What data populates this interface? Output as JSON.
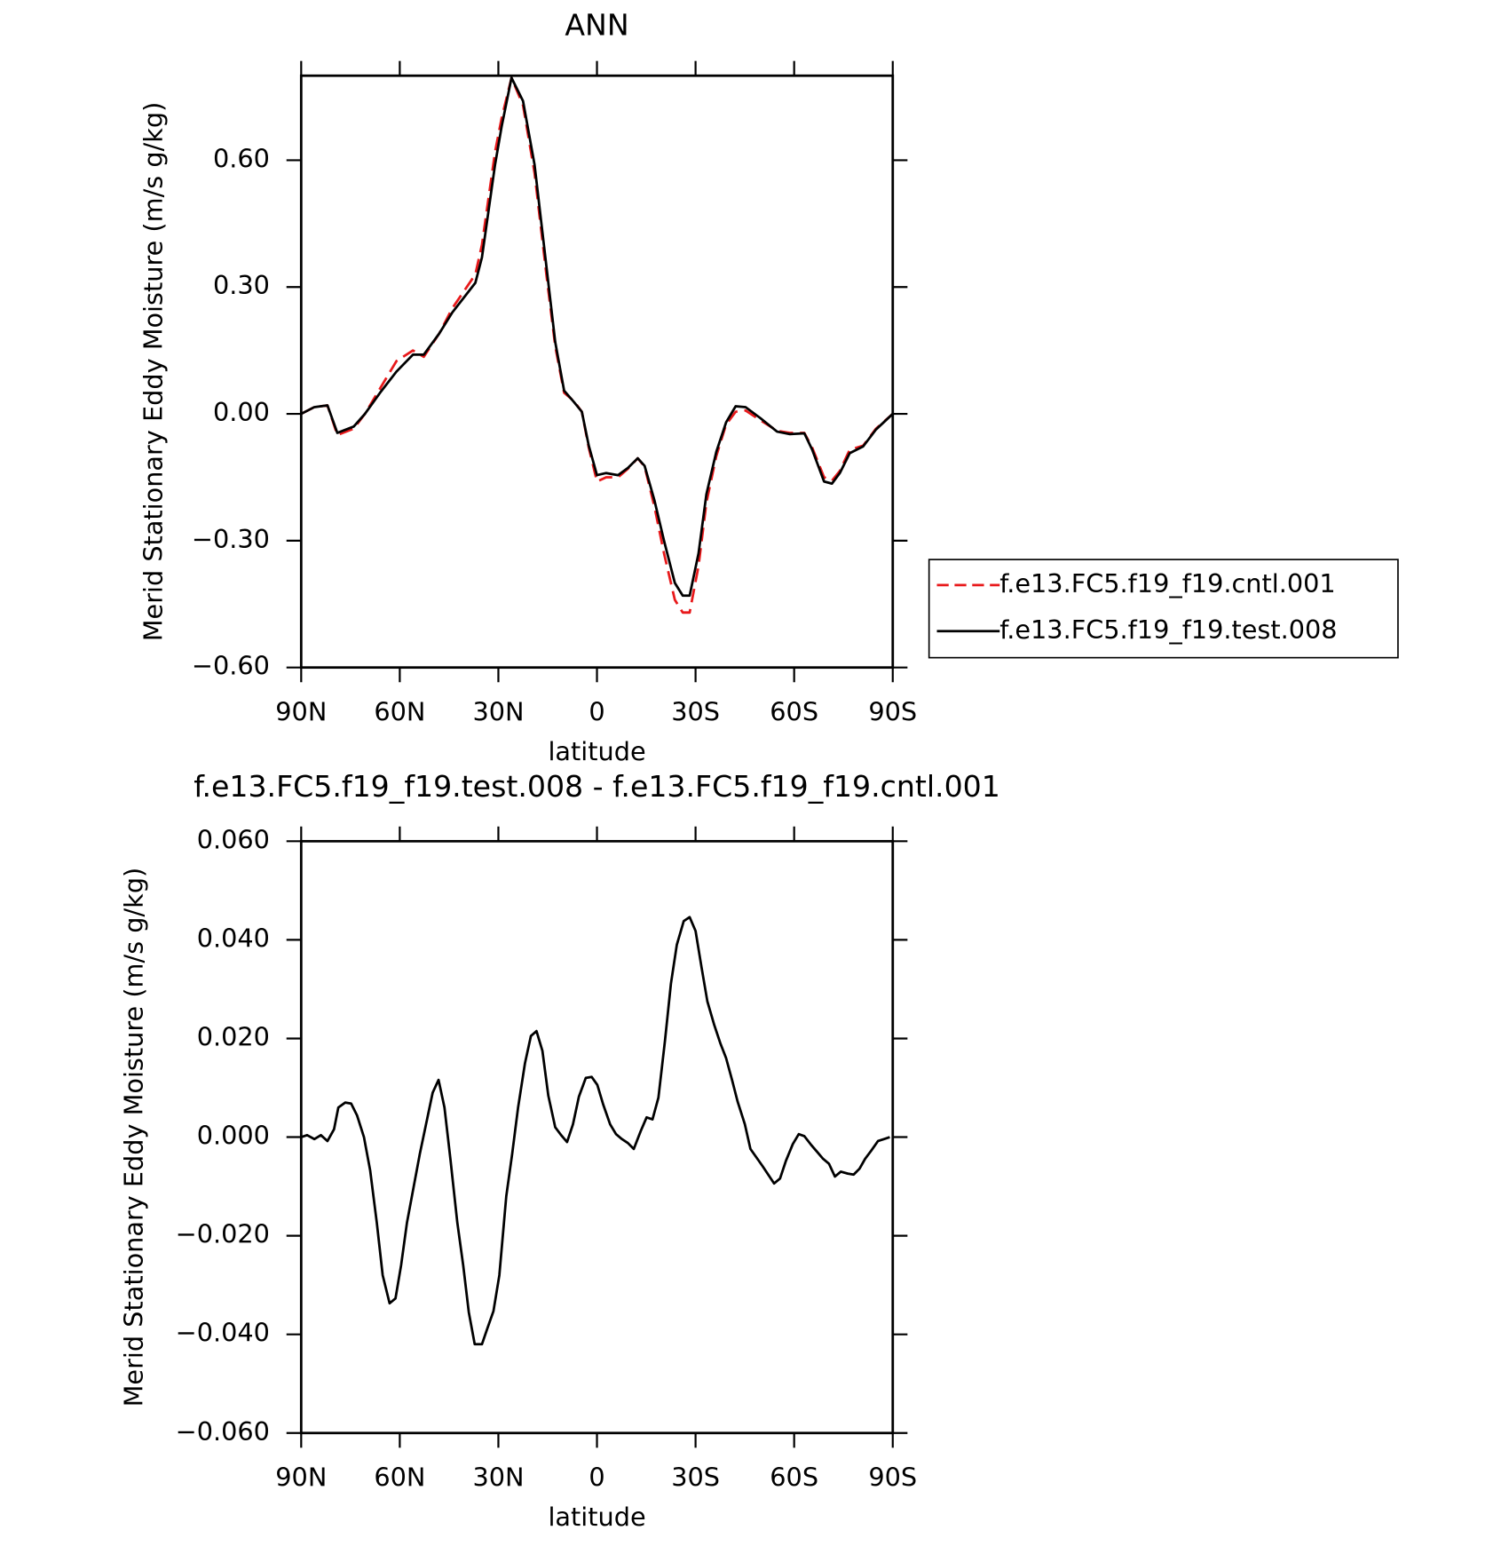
{
  "chart_data": [
    {
      "type": "line",
      "title": "ANN",
      "xlabel": "latitude",
      "ylabel": "Merid Stationary Eddy Moisture (m/s g/kg)",
      "x": [
        90,
        86,
        82,
        79,
        74,
        70.6,
        66,
        61,
        56,
        52.7,
        48,
        44,
        37,
        35,
        31,
        29,
        26,
        22.5,
        19,
        15.4,
        12.7,
        10,
        7,
        4.6,
        2.5,
        0,
        -2.8,
        -6.4,
        -9.4,
        -12.4,
        -14.5,
        -17.5,
        -20.4,
        -23.7,
        -26.1,
        -28.2,
        -30.9,
        -33.3,
        -36.3,
        -39.3,
        -42.2,
        -45.2,
        -49.7,
        -54.8,
        -58.7,
        -63.1,
        -65.5,
        -69.1,
        -71.5,
        -73.9,
        -76.9,
        -81,
        -84.9,
        -90
      ],
      "series": [
        {
          "name": "f.e13.FC5.f19_f19.cntl.001",
          "color": "#e8191b",
          "dash": true,
          "values": [
            0,
            0.016,
            0.02,
            -0.05,
            -0.035,
            0,
            0.06,
            0.125,
            0.15,
            0.135,
            0.19,
            0.25,
            0.33,
            0.4,
            0.62,
            0.7,
            0.795,
            0.73,
            0.57,
            0.33,
            0.16,
            0.05,
            0.03,
            0.005,
            -0.08,
            -0.16,
            -0.15,
            -0.15,
            -0.13,
            -0.105,
            -0.125,
            -0.22,
            -0.33,
            -0.44,
            -0.47,
            -0.47,
            -0.36,
            -0.21,
            -0.1,
            -0.025,
            0.005,
            0.008,
            -0.015,
            -0.04,
            -0.045,
            -0.045,
            -0.08,
            -0.15,
            -0.158,
            -0.135,
            -0.085,
            -0.075,
            -0.035,
            0
          ]
        },
        {
          "name": "f.e13.FC5.f19_f19.test.008",
          "color": "#000000",
          "dash": false,
          "values": [
            0,
            0.016,
            0.02,
            -0.045,
            -0.03,
            0,
            0.05,
            0.1,
            0.14,
            0.14,
            0.19,
            0.24,
            0.31,
            0.37,
            0.59,
            0.68,
            0.795,
            0.74,
            0.59,
            0.35,
            0.17,
            0.055,
            0.028,
            0.005,
            -0.075,
            -0.145,
            -0.14,
            -0.145,
            -0.128,
            -0.105,
            -0.123,
            -0.205,
            -0.3,
            -0.4,
            -0.43,
            -0.43,
            -0.33,
            -0.19,
            -0.09,
            -0.02,
            0.018,
            0.016,
            -0.01,
            -0.042,
            -0.048,
            -0.046,
            -0.085,
            -0.16,
            -0.165,
            -0.14,
            -0.093,
            -0.077,
            -0.037,
            0
          ]
        }
      ],
      "xlim": [
        90,
        -90
      ],
      "xticks": [
        {
          "value": 90,
          "label": "90N"
        },
        {
          "value": 60,
          "label": "60N"
        },
        {
          "value": 30,
          "label": "30N"
        },
        0,
        {
          "value": -30,
          "label": "30S"
        },
        {
          "value": -60,
          "label": "60S"
        },
        {
          "value": -90,
          "label": "90S"
        }
      ],
      "ylim": [
        -0.6,
        0.8
      ],
      "yticks": [
        {
          "value": -0.6,
          "label": "−0.60"
        },
        {
          "value": -0.3,
          "label": "−0.30"
        },
        {
          "value": 0,
          "label": "0.00"
        },
        {
          "value": 0.3,
          "label": "0.30"
        },
        {
          "value": 0.6,
          "label": "0.60"
        }
      ],
      "legend": "right"
    },
    {
      "type": "line",
      "title": "f.e13.FC5.f19_f19.test.008 - f.e13.FC5.f19_f19.cntl.001",
      "xlabel": "latitude",
      "ylabel": "Merid Stationary Eddy Moisture (m/s g/kg)",
      "x": [
        90,
        88.2,
        86,
        84,
        82,
        80,
        78.7,
        76.6,
        74.8,
        73,
        70.9,
        69,
        67,
        65.2,
        63.1,
        61.3,
        59.6,
        57.8,
        53.9,
        50,
        48.2,
        46.4,
        44.6,
        42.5,
        40.7,
        39,
        37.2,
        35,
        33.3,
        31.5,
        29.7,
        27.6,
        25.8,
        24,
        21.9,
        20.1,
        18.4,
        16.6,
        14.8,
        12.7,
        10.9,
        9.1,
        7.3,
        5.5,
        3.4,
        1.6,
        -0.1,
        -1.9,
        -4,
        -5.8,
        -7.6,
        -9.4,
        -11.2,
        -13.3,
        -15.1,
        -16.9,
        -18.7,
        -20.7,
        -22.5,
        -24.3,
        -26.4,
        -28.2,
        -30,
        -31.8,
        -33.6,
        -35.7,
        -37.5,
        -39.3,
        -41.1,
        -42.8,
        -45,
        -46.7,
        -50.3,
        -53.9,
        -55.7,
        -57.5,
        -59.6,
        -61.4,
        -63.1,
        -65.2,
        -67,
        -68.8,
        -70.6,
        -72.4,
        -74.2,
        -76.3,
        -78.1,
        -79.9,
        -81.6,
        -83.4,
        -85.5,
        -87.3,
        -89.1
      ],
      "values": [
        0,
        0.0004,
        -0.0004,
        0.0004,
        -0.0008,
        0.0016,
        0.006,
        0.007,
        0.0068,
        0.0044,
        0,
        -0.0068,
        -0.0173,
        -0.028,
        -0.0337,
        -0.0327,
        -0.026,
        -0.0173,
        -0.0034,
        0.009,
        0.0116,
        0.006,
        -0.0044,
        -0.0173,
        -0.026,
        -0.0355,
        -0.042,
        -0.042,
        -0.0387,
        -0.0353,
        -0.028,
        -0.012,
        -0.0034,
        0.006,
        0.015,
        0.0205,
        0.0215,
        0.0175,
        0.0084,
        0.002,
        0.0004,
        -0.001,
        0.0026,
        0.0082,
        0.012,
        0.0122,
        0.0106,
        0.0066,
        0.0026,
        0.0006,
        -0.0004,
        -0.0012,
        -0.0024,
        0.0012,
        0.004,
        0.0036,
        0.008,
        0.0196,
        0.0311,
        0.039,
        0.0438,
        0.0446,
        0.0418,
        0.0345,
        0.0275,
        0.0227,
        0.0191,
        0.016,
        0.0116,
        0.0072,
        0.0026,
        -0.0024,
        -0.0058,
        -0.0094,
        -0.0084,
        -0.0048,
        -0.0014,
        0.0006,
        0.0002,
        -0.0016,
        -0.003,
        -0.0044,
        -0.0054,
        -0.008,
        -0.007,
        -0.0074,
        -0.0076,
        -0.0064,
        -0.0044,
        -0.0028,
        -0.0008,
        -0.0004,
        0
      ],
      "color": "#000000",
      "xlim": [
        90,
        -90
      ],
      "xticks": [
        {
          "value": 90,
          "label": "90N"
        },
        {
          "value": 60,
          "label": "60N"
        },
        {
          "value": 30,
          "label": "30N"
        },
        0,
        {
          "value": -30,
          "label": "30S"
        },
        {
          "value": -60,
          "label": "60S"
        },
        {
          "value": -90,
          "label": "90S"
        }
      ],
      "ylim": [
        -0.06,
        0.06
      ],
      "yticks": [
        {
          "value": -0.06,
          "label": "−0.060"
        },
        {
          "value": -0.04,
          "label": "−0.040"
        },
        {
          "value": -0.02,
          "label": "−0.020"
        },
        {
          "value": 0,
          "label": "0.000"
        },
        {
          "value": 0.02,
          "label": "0.020"
        },
        {
          "value": 0.04,
          "label": "0.040"
        },
        {
          "value": 0.06,
          "label": "0.060"
        }
      ]
    }
  ]
}
